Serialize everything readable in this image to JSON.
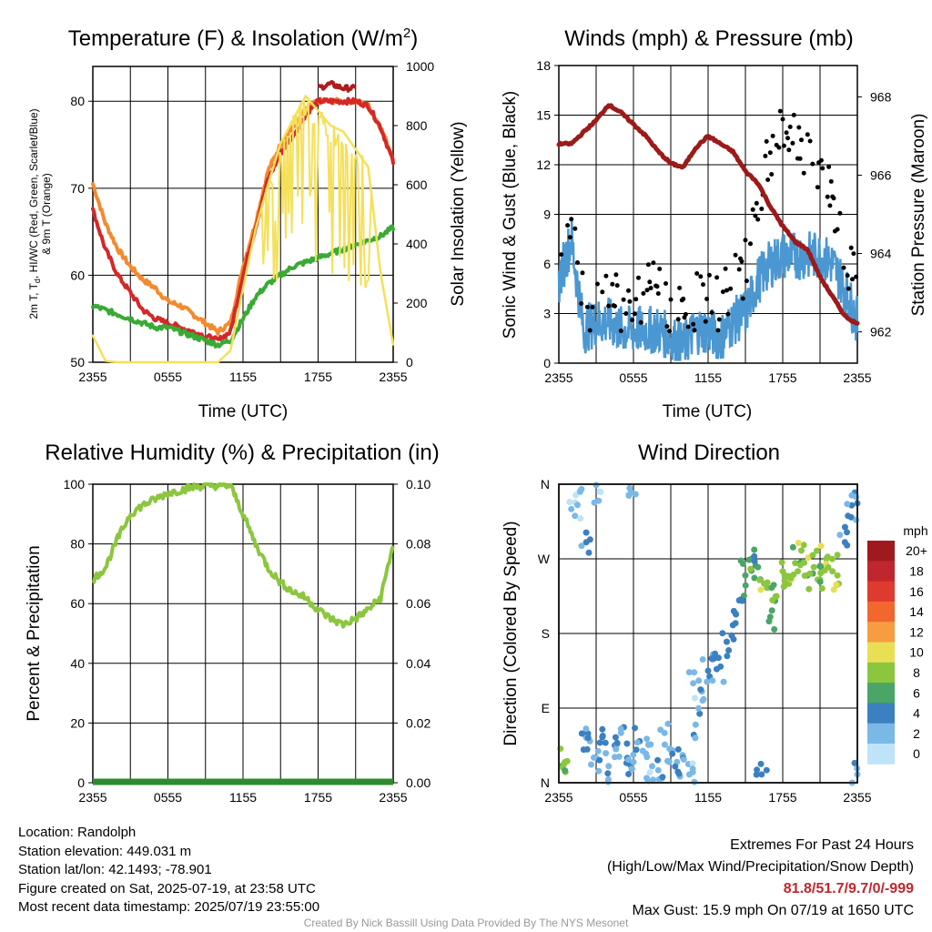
{
  "colors": {
    "temp_red": "#d42828",
    "dewpoint_green": "#3aaa35",
    "temp9m_orange": "#f28b30",
    "heatindex_scarlet": "#b01c1c",
    "insolation_yellow": "#f5e05a",
    "wind_blue": "#4b97d1",
    "gust_black": "#000000",
    "pressure_maroon": "#9c1a1a",
    "rh_green": "#8cc63f",
    "precip_green": "#2e8b2e"
  },
  "panels": {
    "temp": {
      "title": "Temperature (F) & Insolation (W/m",
      "title_sup": "2",
      "title_end": ")",
      "ylabel_left_line1": "2m T, T",
      "ylabel_left_sub": "d",
      "ylabel_left_line1_end": ", HI/WC (Red, Green, Scarlet/Blue)",
      "ylabel_left_line2": "& 9m T (Orange)",
      "ylabel_right": "Solar Insolation (Yellow)",
      "xlabel": "Time (UTC)"
    },
    "wind": {
      "title": "Winds (mph) & Pressure (mb)",
      "ylabel_left": "Sonic Wind & Gust (Blue, Black)",
      "ylabel_right": "Station Pressure (Maroon)",
      "xlabel": "Time (UTC)"
    },
    "rh": {
      "title": "Relative Humidity (%) & Precipitation (in)",
      "ylabel_left": "Percent & Precipitation"
    },
    "dir": {
      "title": "Wind Direction",
      "ylabel_left": "Direction (Colored By Speed)",
      "legend_title": "mph"
    }
  },
  "chart_data": [
    {
      "type": "line",
      "title": "Temperature (F) & Insolation (W/m2)",
      "x_ticks": [
        "2355",
        "0555",
        "1155",
        "1755",
        "2355"
      ],
      "y_left_ticks": [
        50,
        60,
        70,
        80
      ],
      "y_left_range": [
        50,
        84
      ],
      "y_right_ticks": [
        0,
        200,
        400,
        600,
        800,
        1000
      ],
      "y_right_range": [
        0,
        1000
      ],
      "hours": [
        0,
        1,
        2,
        3,
        4,
        5,
        6,
        7,
        8,
        9,
        10,
        11,
        12,
        13,
        14,
        15,
        16,
        17,
        18,
        19,
        20,
        21,
        22,
        23,
        24
      ],
      "series": [
        {
          "key": "temp9m",
          "axis": "left",
          "values": [
            70.5,
            66,
            63,
            61,
            59.5,
            58.5,
            57,
            56.5,
            55.5,
            54.5,
            53.5,
            54.5,
            61,
            66,
            72,
            75,
            77,
            79,
            80,
            80,
            80,
            80,
            79.5,
            77,
            73.5
          ]
        },
        {
          "key": "temp",
          "axis": "left",
          "values": [
            67.5,
            63,
            60,
            58,
            56,
            55,
            54.5,
            54,
            53.5,
            53,
            52.5,
            53.5,
            60,
            65.5,
            71,
            74,
            76,
            78.5,
            80,
            80,
            80,
            80,
            79.5,
            77,
            73
          ]
        },
        {
          "key": "heatindex",
          "axis": "left",
          "values": [
            null,
            null,
            null,
            null,
            null,
            null,
            null,
            null,
            null,
            null,
            null,
            null,
            null,
            null,
            null,
            null,
            null,
            null,
            81.5,
            82,
            81.5,
            81.5,
            null,
            null,
            null
          ]
        },
        {
          "key": "dewpoint",
          "axis": "left",
          "values": [
            56.5,
            56,
            55.5,
            55,
            54.5,
            54,
            54,
            53.5,
            53,
            52.5,
            52,
            52.5,
            55,
            57.5,
            59,
            60,
            61,
            61.5,
            62,
            62.5,
            63,
            63.5,
            64,
            64.5,
            65.5
          ]
        },
        {
          "key": "insolation",
          "axis": "right",
          "values": [
            90,
            5,
            0,
            0,
            0,
            0,
            0,
            0,
            0,
            0,
            0,
            40,
            250,
            450,
            600,
            740,
            820,
            900,
            850,
            800,
            780,
            720,
            660,
            300,
            60
          ]
        }
      ]
    },
    {
      "type": "line",
      "title": "Winds (mph) & Pressure (mb)",
      "x_ticks": [
        "2355",
        "0555",
        "1155",
        "1755",
        "2355"
      ],
      "y_left_ticks": [
        0,
        3,
        6,
        9,
        12,
        15,
        18
      ],
      "y_left_range": [
        0,
        18
      ],
      "y_right_ticks": [
        962,
        964,
        966,
        968
      ],
      "y_right_range": [
        961.2,
        968.8
      ],
      "hours": [
        0,
        1,
        2,
        3,
        4,
        5,
        6,
        7,
        8,
        9,
        10,
        11,
        12,
        13,
        14,
        15,
        16,
        17,
        18,
        19,
        20,
        21,
        22,
        23,
        24
      ],
      "series": [
        {
          "key": "wind",
          "axis": "left",
          "values": [
            5,
            7.5,
            2,
            2.5,
            2.5,
            2,
            2,
            2,
            2,
            1.5,
            1,
            2,
            2,
            1.5,
            2.5,
            3,
            5,
            6,
            6.5,
            6.5,
            6.5,
            6.5,
            6,
            4.5,
            2.5
          ]
        },
        {
          "key": "gust",
          "axis": "left",
          "values": [
            6,
            8.5,
            3,
            3,
            3.5,
            3,
            3,
            3.5,
            4,
            2.5,
            2,
            3,
            3,
            3,
            4,
            5,
            9,
            12,
            13,
            13.5,
            12,
            11,
            9.5,
            6,
            3.5
          ]
        },
        {
          "key": "pressure",
          "axis": "right",
          "values": [
            966.8,
            966.8,
            967.1,
            967.4,
            967.8,
            967.6,
            967.3,
            967,
            966.6,
            966.3,
            966.2,
            966.7,
            967,
            966.8,
            966.6,
            966.1,
            965.8,
            965.2,
            964.7,
            964.3,
            964.1,
            963.4,
            962.9,
            962.4,
            962.2
          ]
        }
      ]
    },
    {
      "type": "line",
      "title": "Relative Humidity (%) & Precipitation (in)",
      "x_ticks": [
        "2355",
        "0555",
        "1155",
        "1755",
        "2355"
      ],
      "y_left_ticks": [
        0,
        20,
        40,
        60,
        80,
        100
      ],
      "y_left_range": [
        0,
        100
      ],
      "y_right_ticks": [
        "0.00",
        "0.02",
        "0.04",
        "0.06",
        "0.08",
        "0.10"
      ],
      "y_right_range": [
        0,
        0.1
      ],
      "hours": [
        0,
        1,
        2,
        3,
        4,
        5,
        6,
        7,
        8,
        9,
        10,
        11,
        12,
        13,
        14,
        15,
        16,
        17,
        18,
        19,
        20,
        21,
        22,
        23,
        24
      ],
      "series": [
        {
          "key": "rh",
          "axis": "left",
          "values": [
            68,
            72,
            82,
            90,
            93,
            95,
            97,
            98,
            99,
            99.5,
            99.5,
            99.5,
            90,
            80,
            72,
            67,
            64,
            62,
            58,
            55,
            53,
            55,
            58,
            62,
            80
          ]
        },
        {
          "key": "precip",
          "axis": "right",
          "values": [
            0,
            0,
            0,
            0,
            0,
            0,
            0,
            0,
            0,
            0,
            0,
            0,
            0,
            0,
            0,
            0,
            0,
            0,
            0,
            0,
            0,
            0,
            0,
            0,
            0
          ]
        }
      ]
    },
    {
      "type": "scatter",
      "title": "Wind Direction",
      "x_ticks": [
        "2355",
        "0555",
        "1155",
        "1755",
        "2355"
      ],
      "y_ticks": [
        "N",
        "E",
        "S",
        "W",
        "N"
      ],
      "y_range_degrees": [
        0,
        360
      ],
      "points_hour_dir_speed": [
        [
          0.2,
          20,
          6
        ],
        [
          0.5,
          25,
          7
        ],
        [
          1.0,
          330,
          1
        ],
        [
          1.5,
          335,
          1
        ],
        [
          2,
          40,
          3
        ],
        [
          2.2,
          290,
          3
        ],
        [
          2.5,
          50,
          2
        ],
        [
          3,
          30,
          2
        ],
        [
          3.5,
          55,
          3
        ],
        [
          3.2,
          340,
          1
        ],
        [
          4,
          20,
          2
        ],
        [
          4.5,
          45,
          3
        ],
        [
          5,
          60,
          2
        ],
        [
          5.5,
          30,
          3
        ],
        [
          5.8,
          350,
          1
        ],
        [
          6,
          25,
          2
        ],
        [
          6.5,
          50,
          3
        ],
        [
          7,
          35,
          2
        ],
        [
          7.5,
          20,
          1
        ],
        [
          8,
          15,
          2
        ],
        [
          8.5,
          60,
          2
        ],
        [
          9,
          40,
          2
        ],
        [
          9.5,
          25,
          2
        ],
        [
          10,
          30,
          3
        ],
        [
          10.5,
          10,
          1
        ],
        [
          11,
          70,
          2
        ],
        [
          11.5,
          110,
          2
        ],
        [
          12,
          135,
          3
        ],
        [
          12.5,
          150,
          3
        ],
        [
          13,
          140,
          3
        ],
        [
          13.5,
          170,
          4
        ],
        [
          14,
          190,
          4
        ],
        [
          14.5,
          220,
          4
        ],
        [
          15,
          250,
          5
        ],
        [
          15.5,
          270,
          6
        ],
        [
          16,
          260,
          5
        ],
        [
          16.5,
          240,
          8
        ],
        [
          17,
          200,
          6
        ],
        [
          17.5,
          225,
          7
        ],
        [
          18,
          255,
          8
        ],
        [
          18.5,
          240,
          8
        ],
        [
          19,
          265,
          7
        ],
        [
          19.5,
          280,
          8
        ],
        [
          20,
          250,
          6
        ],
        [
          20.5,
          260,
          8
        ],
        [
          21,
          245,
          7
        ],
        [
          21.5,
          270,
          8
        ],
        [
          22,
          255,
          7
        ],
        [
          22.5,
          240,
          8
        ],
        [
          23,
          290,
          3
        ],
        [
          23.5,
          320,
          3
        ],
        [
          23.8,
          350,
          3
        ],
        [
          24,
          10,
          2
        ],
        [
          16.3,
          10,
          3
        ],
        [
          10.8,
          120,
          1
        ]
      ],
      "legend": {
        "title": "mph",
        "labels": [
          "20+",
          "18",
          "16",
          "14",
          "12",
          "10",
          "8",
          "6",
          "4",
          "2",
          "0"
        ],
        "colors": [
          "#9e1a1f",
          "#c0262d",
          "#df3a2e",
          "#f2672e",
          "#f79c40",
          "#e8df54",
          "#8cc63f",
          "#4aa566",
          "#3b80c0",
          "#7ab8e6",
          "#bfe3f8"
        ]
      }
    }
  ],
  "info_left": {
    "location": "Location: Randolph",
    "elevation": "Station elevation: 449.031 m",
    "latlon": "Station lat/lon: 42.1493; -78.901",
    "created": "Figure created on Sat, 2025-07-19, at 23:58 UTC",
    "recent": "Most recent data timestamp: 2025/07/19 23:55:00"
  },
  "info_right": {
    "line1": "Extremes For Past 24 Hours",
    "line2": "(High/Low/Max Wind/Precipitation/Snow Depth)",
    "values": "81.8/51.7/9.7/0/-999",
    "gust": "Max Gust: 15.9 mph On 07/19 at 1650 UTC"
  },
  "credit": "Created By Nick Bassill Using Data Provided By The NYS Mesonet"
}
